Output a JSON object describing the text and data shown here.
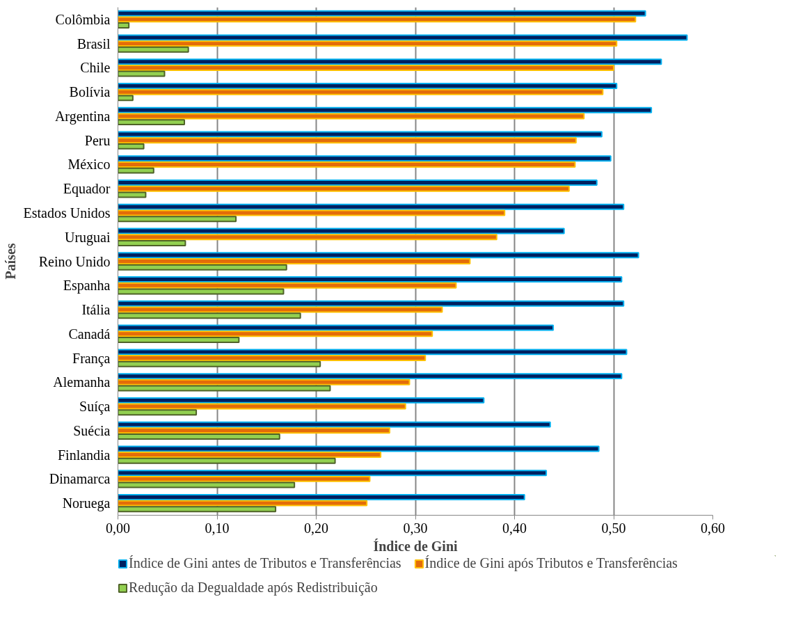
{
  "chart_data": {
    "type": "bar",
    "orientation": "horizontal",
    "xlabel": "Índice de Gini",
    "ylabel": "Países",
    "categories": [
      "Colômbia",
      "Brasil",
      "Chile",
      "Bolívia",
      "Argentina",
      "Peru",
      "México",
      "Equador",
      "Estados Unidos",
      "Uruguai",
      "Reino Unido",
      "Espanha",
      "Itália",
      "Canadá",
      "França",
      "Alemanha",
      "Suíça",
      "Suécia",
      "Finlandia",
      "Dinamarca",
      "Noruega"
    ],
    "series": [
      {
        "name": "Índice de Gini antes de Tributos e Transferências",
        "color": "#002060",
        "values": [
          0.532,
          0.574,
          0.548,
          0.503,
          0.538,
          0.488,
          0.497,
          0.483,
          0.51,
          0.45,
          0.525,
          0.508,
          0.51,
          0.439,
          0.513,
          0.508,
          0.369,
          0.436,
          0.485,
          0.432,
          0.41
        ]
      },
      {
        "name": "Índice de Gini após Tributos e Transferências",
        "color": "#e36c09",
        "values": [
          0.522,
          0.503,
          0.5,
          0.489,
          0.47,
          0.462,
          0.461,
          0.455,
          0.39,
          0.382,
          0.355,
          0.341,
          0.327,
          0.317,
          0.31,
          0.294,
          0.29,
          0.274,
          0.265,
          0.254,
          0.251
        ]
      },
      {
        "name": "Redução da Degualdade após Redistribuição",
        "color": "#92d050",
        "values": [
          0.011,
          0.071,
          0.047,
          0.015,
          0.067,
          0.026,
          0.036,
          0.028,
          0.119,
          0.068,
          0.17,
          0.167,
          0.184,
          0.122,
          0.204,
          0.214,
          0.079,
          0.163,
          0.219,
          0.178,
          0.159
        ]
      }
    ],
    "xlim": [
      0,
      0.6
    ],
    "xticks": [
      {
        "value": 0,
        "label": "0,00"
      },
      {
        "value": 0.1,
        "label": "0,10"
      },
      {
        "value": 0.2,
        "label": "0,20"
      },
      {
        "value": 0.3,
        "label": "0,30"
      },
      {
        "value": 0.4,
        "label": "0,40"
      },
      {
        "value": 0.5,
        "label": "0,50"
      },
      {
        "value": 0.6,
        "label": "0,60"
      }
    ],
    "grid": "x",
    "legend": "bottom"
  }
}
